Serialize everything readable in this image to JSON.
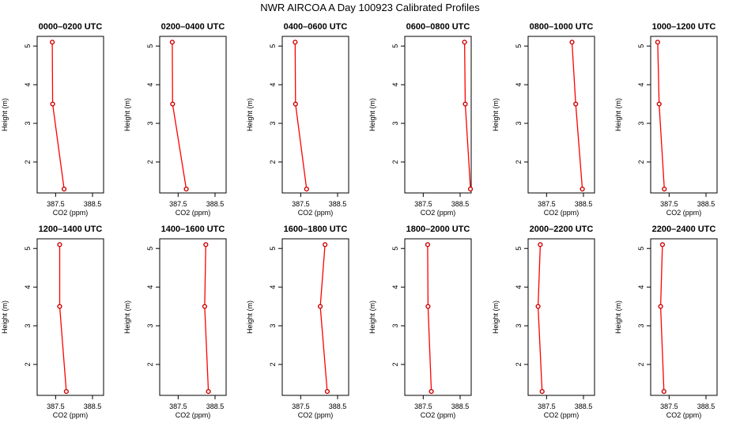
{
  "title": "NWR AIRCOA A  Day 100923  Calibrated Profiles",
  "chart_data": [
    {
      "type": "line",
      "title": "0000–0200 UTC",
      "xlabel": "CO2 (ppm)",
      "ylabel": "Height (m)",
      "xlim": [
        387.0,
        388.8
      ],
      "ylim": [
        1.2,
        5.25
      ],
      "x_ticks": [
        "387.5",
        "388.5"
      ],
      "y_ticks": [
        "2",
        "3",
        "4",
        "5"
      ],
      "series": [
        {
          "x": [
            387.41,
            387.42,
            387.73
          ],
          "y": [
            5.1,
            3.5,
            1.3
          ]
        }
      ]
    },
    {
      "type": "line",
      "title": "0200–0400 UTC",
      "xlabel": "CO2 (ppm)",
      "ylabel": "Height (m)",
      "xlim": [
        387.0,
        388.8
      ],
      "ylim": [
        1.2,
        5.25
      ],
      "x_ticks": [
        "387.5",
        "388.5"
      ],
      "y_ticks": [
        "2",
        "3",
        "4",
        "5"
      ],
      "series": [
        {
          "x": [
            387.34,
            387.35,
            387.72
          ],
          "y": [
            5.1,
            3.5,
            1.3
          ]
        }
      ]
    },
    {
      "type": "line",
      "title": "0400–0600 UTC",
      "xlabel": "CO2 (ppm)",
      "ylabel": "Height (m)",
      "xlim": [
        387.0,
        388.8
      ],
      "ylim": [
        1.2,
        5.25
      ],
      "x_ticks": [
        "387.5",
        "388.5"
      ],
      "y_ticks": [
        "2",
        "3",
        "4",
        "5"
      ],
      "series": [
        {
          "x": [
            387.35,
            387.36,
            387.66
          ],
          "y": [
            5.1,
            3.5,
            1.3
          ]
        }
      ]
    },
    {
      "type": "line",
      "title": "0600–0800 UTC",
      "xlabel": "CO2 (ppm)",
      "ylabel": "Height (m)",
      "xlim": [
        387.0,
        388.8
      ],
      "ylim": [
        1.2,
        5.25
      ],
      "x_ticks": [
        "387.5",
        "388.5"
      ],
      "y_ticks": [
        "2",
        "3",
        "4",
        "5"
      ],
      "series": [
        {
          "x": [
            388.62,
            388.64,
            388.78
          ],
          "y": [
            5.1,
            3.5,
            1.3
          ]
        }
      ]
    },
    {
      "type": "line",
      "title": "0800–1000 UTC",
      "xlabel": "CO2 (ppm)",
      "ylabel": "Height (m)",
      "xlim": [
        387.0,
        388.8
      ],
      "ylim": [
        1.2,
        5.25
      ],
      "x_ticks": [
        "387.5",
        "388.5"
      ],
      "y_ticks": [
        "2",
        "3",
        "4",
        "5"
      ],
      "series": [
        {
          "x": [
            388.19,
            388.29,
            388.47
          ],
          "y": [
            5.1,
            3.5,
            1.3
          ]
        }
      ]
    },
    {
      "type": "line",
      "title": "1000–1200 UTC",
      "xlabel": "CO2 (ppm)",
      "ylabel": "Height (m)",
      "xlim": [
        387.0,
        388.8
      ],
      "ylim": [
        1.2,
        5.25
      ],
      "x_ticks": [
        "387.5",
        "388.5"
      ],
      "y_ticks": [
        "2",
        "3",
        "4",
        "5"
      ],
      "series": [
        {
          "x": [
            387.19,
            387.23,
            387.37
          ],
          "y": [
            5.1,
            3.5,
            1.3
          ]
        }
      ]
    },
    {
      "type": "line",
      "title": "1200–1400 UTC",
      "xlabel": "CO2 (ppm)",
      "ylabel": "Height (m)",
      "xlim": [
        387.0,
        388.8
      ],
      "ylim": [
        1.2,
        5.25
      ],
      "x_ticks": [
        "387.5",
        "388.5"
      ],
      "y_ticks": [
        "2",
        "3",
        "4",
        "5"
      ],
      "series": [
        {
          "x": [
            387.61,
            387.61,
            387.79
          ],
          "y": [
            5.1,
            3.5,
            1.3
          ]
        }
      ]
    },
    {
      "type": "line",
      "title": "1400–1600 UTC",
      "xlabel": "CO2 (ppm)",
      "ylabel": "Height (m)",
      "xlim": [
        387.0,
        388.8
      ],
      "ylim": [
        1.2,
        5.25
      ],
      "x_ticks": [
        "387.5",
        "388.5"
      ],
      "y_ticks": [
        "2",
        "3",
        "4",
        "5"
      ],
      "series": [
        {
          "x": [
            388.25,
            388.22,
            388.32
          ],
          "y": [
            5.1,
            3.5,
            1.3
          ]
        }
      ]
    },
    {
      "type": "line",
      "title": "1600–1800 UTC",
      "xlabel": "CO2 (ppm)",
      "ylabel": "Height (m)",
      "xlim": [
        387.0,
        388.8
      ],
      "ylim": [
        1.2,
        5.25
      ],
      "x_ticks": [
        "387.5",
        "388.5"
      ],
      "y_ticks": [
        "2",
        "3",
        "4",
        "5"
      ],
      "series": [
        {
          "x": [
            388.16,
            388.03,
            388.22
          ],
          "y": [
            5.1,
            3.5,
            1.3
          ]
        }
      ]
    },
    {
      "type": "line",
      "title": "1800–2000 UTC",
      "xlabel": "CO2 (ppm)",
      "ylabel": "Height (m)",
      "xlim": [
        387.0,
        388.8
      ],
      "ylim": [
        1.2,
        5.25
      ],
      "x_ticks": [
        "387.5",
        "388.5"
      ],
      "y_ticks": [
        "2",
        "3",
        "4",
        "5"
      ],
      "series": [
        {
          "x": [
            387.62,
            387.63,
            387.72
          ],
          "y": [
            5.1,
            3.5,
            1.3
          ]
        }
      ]
    },
    {
      "type": "line",
      "title": "2000–2200 UTC",
      "xlabel": "CO2 (ppm)",
      "ylabel": "Height (m)",
      "xlim": [
        387.0,
        388.8
      ],
      "ylim": [
        1.2,
        5.25
      ],
      "x_ticks": [
        "387.5",
        "388.5"
      ],
      "y_ticks": [
        "2",
        "3",
        "4",
        "5"
      ],
      "series": [
        {
          "x": [
            387.33,
            387.27,
            387.38
          ],
          "y": [
            5.1,
            3.5,
            1.3
          ]
        }
      ]
    },
    {
      "type": "line",
      "title": "2200–2400 UTC",
      "xlabel": "CO2 (ppm)",
      "ylabel": "Height (m)",
      "xlim": [
        387.0,
        388.8
      ],
      "ylim": [
        1.2,
        5.25
      ],
      "x_ticks": [
        "387.5",
        "388.5"
      ],
      "y_ticks": [
        "2",
        "3",
        "4",
        "5"
      ],
      "series": [
        {
          "x": [
            387.32,
            387.27,
            387.36
          ],
          "y": [
            5.1,
            3.5,
            1.3
          ]
        }
      ]
    }
  ],
  "colors": {
    "line": "#ff0000",
    "marker": "#cc0000",
    "axis": "#000000"
  }
}
